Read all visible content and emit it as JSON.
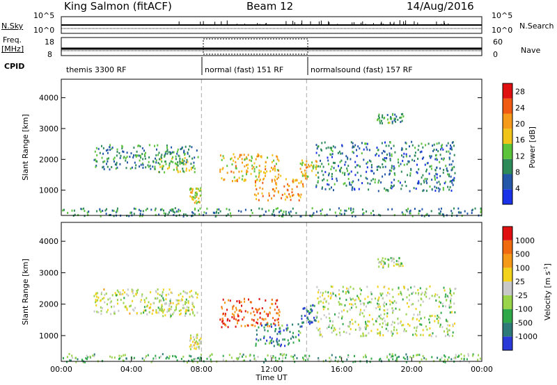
{
  "header": {
    "station": "King Salmon (fitACF)",
    "beam": "Beam 12",
    "date": "14/Aug/2016"
  },
  "strip": {
    "nsky_label": "N.Sky",
    "nsky_ticks": [
      "10^5",
      "10^0"
    ],
    "nsearch_ticks": [
      "10^5",
      "10^0"
    ],
    "nsearch_label": "N.Search",
    "freq_label": "Freq.",
    "freq_unit": "[MHz]",
    "freq_ticks": [
      "18",
      "8"
    ],
    "nave_ticks": [
      "60",
      "0"
    ],
    "nave_label": "Nave",
    "cpid_label": "CPID",
    "cpid_segments": [
      {
        "label": "themis 3300 RF",
        "start_hour": 0,
        "end_hour": 8
      },
      {
        "label": "normal (fast) 151 RF",
        "start_hour": 8,
        "end_hour": 14
      },
      {
        "label": "normalsound (fast) 157 RF",
        "start_hour": 14,
        "end_hour": 24
      }
    ]
  },
  "chart_data": [
    {
      "type": "heatmap",
      "panel": "power",
      "ylabel": "Slant Range [km]",
      "xlabel": "",
      "xlim": [
        0,
        24
      ],
      "ylim": [
        180,
        4600
      ],
      "y_ticks": [
        1000,
        2000,
        3000,
        4000
      ],
      "mode_change_hours": [
        8,
        14
      ],
      "colorbar": {
        "label": "Power [dB]",
        "ticks": [
          4,
          8,
          12,
          16,
          20,
          24,
          28
        ],
        "range": [
          0,
          30
        ],
        "colors": [
          "#1a33e8",
          "#2457a8",
          "#2f8a5a",
          "#5bc43a",
          "#f0c418",
          "#f59a1a",
          "#f05a12",
          "#e01010"
        ]
      },
      "echo_regions": [
        {
          "t": [
            1.8,
            7.8
          ],
          "r": [
            1700,
            2500
          ],
          "level": 0.3
        },
        {
          "t": [
            5.5,
            7.6
          ],
          "r": [
            1600,
            2200
          ],
          "level": 0.45
        },
        {
          "t": [
            7.3,
            8.0
          ],
          "r": [
            600,
            1100
          ],
          "level": 0.55
        },
        {
          "t": [
            9.0,
            12.5
          ],
          "r": [
            1300,
            2200
          ],
          "level": 0.6
        },
        {
          "t": [
            11.0,
            13.8
          ],
          "r": [
            700,
            1400
          ],
          "level": 0.7
        },
        {
          "t": [
            13.6,
            14.6
          ],
          "r": [
            1400,
            2000
          ],
          "level": 0.6
        },
        {
          "t": [
            14.5,
            22.5
          ],
          "r": [
            1000,
            2600
          ],
          "level": 0.25
        },
        {
          "t": [
            18.0,
            19.5
          ],
          "r": [
            3200,
            3500
          ],
          "level": 0.35
        },
        {
          "t": [
            0.0,
            24.0
          ],
          "r": [
            180,
            450
          ],
          "level": 0.3
        }
      ]
    },
    {
      "type": "heatmap",
      "panel": "velocity",
      "ylabel": "Slant Range [km]",
      "xlabel": "Time UT",
      "xlim": [
        0,
        24
      ],
      "ylim": [
        180,
        4600
      ],
      "y_ticks": [
        1000,
        2000,
        3000,
        4000
      ],
      "x_ticks": [
        "00:00",
        "04:00",
        "08:00",
        "12:00",
        "16:00",
        "20:00",
        "00:00"
      ],
      "mode_change_hours": [
        8,
        14
      ],
      "colorbar": {
        "label": "Velocity [m s",
        "unit_exponent": "-1",
        "unit_close": "]",
        "ticks": [
          1000,
          500,
          100,
          25,
          -25,
          -100,
          -500,
          -1000
        ],
        "colors": [
          "#2a3ad8",
          "#2d7a78",
          "#2fa84a",
          "#9ad44a",
          "#c8c8c8",
          "#f2d21a",
          "#f59a18",
          "#f06a10",
          "#e01010"
        ]
      },
      "echo_regions": [
        {
          "t": [
            1.8,
            7.8
          ],
          "r": [
            1700,
            2500
          ],
          "level": 0.5
        },
        {
          "t": [
            5.5,
            7.6
          ],
          "r": [
            1600,
            2200
          ],
          "level": 0.45
        },
        {
          "t": [
            7.3,
            8.0
          ],
          "r": [
            600,
            1100
          ],
          "level": 0.5
        },
        {
          "t": [
            9.0,
            12.5
          ],
          "r": [
            1300,
            2200
          ],
          "level": 0.85
        },
        {
          "t": [
            11.0,
            13.8
          ],
          "r": [
            700,
            1400
          ],
          "level": 0.2
        },
        {
          "t": [
            13.6,
            14.6
          ],
          "r": [
            1400,
            2000
          ],
          "level": 0.15
        },
        {
          "t": [
            14.5,
            22.5
          ],
          "r": [
            1000,
            2600
          ],
          "level": 0.45
        },
        {
          "t": [
            18.0,
            19.5
          ],
          "r": [
            3200,
            3500
          ],
          "level": 0.45
        },
        {
          "t": [
            0.0,
            24.0
          ],
          "r": [
            180,
            450
          ],
          "level": 0.35
        }
      ]
    }
  ]
}
